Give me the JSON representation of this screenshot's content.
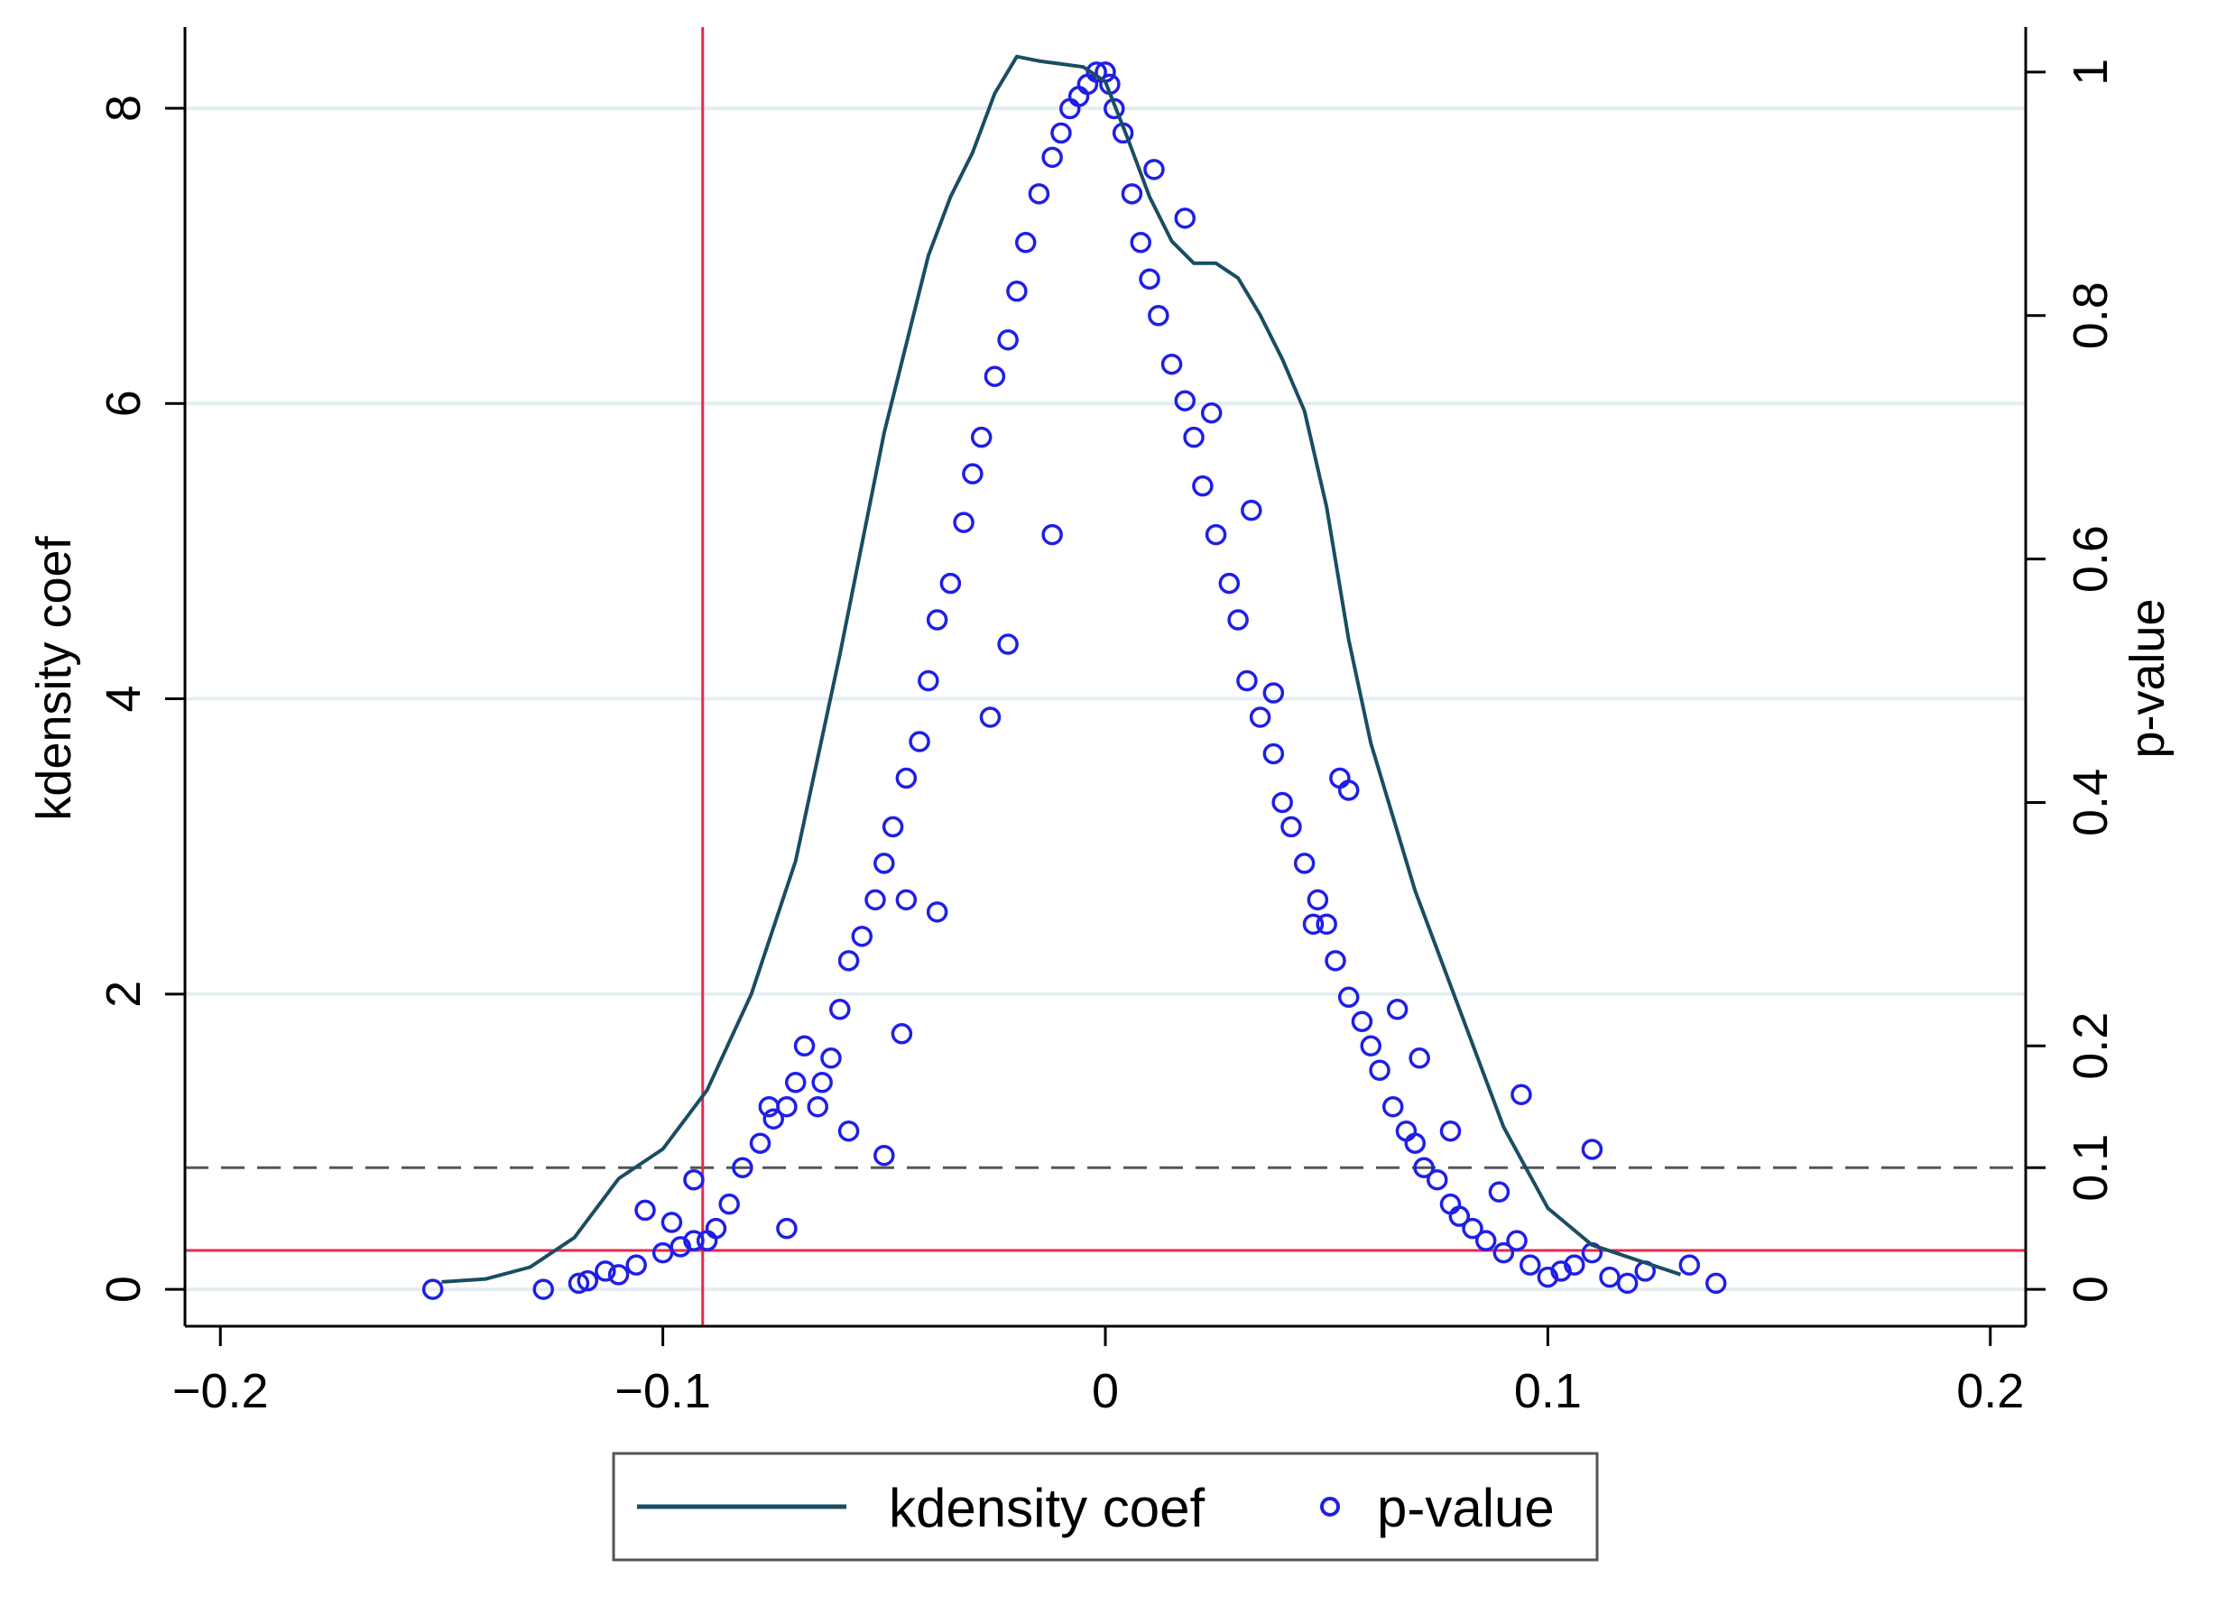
{
  "chart_data": {
    "type": "line+scatter",
    "title": "",
    "xlabel": "",
    "ylabel_left": "kdensity coef",
    "ylabel_right": "p-value",
    "xlim": [
      -0.208,
      0.208
    ],
    "ylim_left": [
      -0.25,
      8.55
    ],
    "ylim_right": [
      -0.0303,
      1.037
    ],
    "x_ticks": [
      -0.2,
      -0.1,
      0,
      0.1,
      0.2
    ],
    "x_tick_labels": [
      "−0.2",
      "−0.1",
      "0",
      "0.1",
      "0.2"
    ],
    "y_left_ticks": [
      0,
      2,
      4,
      6,
      8
    ],
    "y_left_tick_labels": [
      "0",
      "2",
      "4",
      "6",
      "8"
    ],
    "y_right_ticks": [
      0,
      0.1,
      0.2,
      0.4,
      0.6,
      0.8,
      1
    ],
    "y_right_tick_labels": [
      "0",
      "0.1",
      "0.2",
      "0.4",
      "0.6",
      "0.8",
      "1"
    ],
    "gridlines_y_left": [
      0,
      2,
      4,
      6,
      8
    ],
    "reference_lines": {
      "vertical_red_x": -0.091,
      "horizontal_red_p": 0.032,
      "horizontal_dashed_p": 0.1
    },
    "colors": {
      "density": "#1a4d63",
      "points": "#1f1fe6",
      "red_line": "#e8294f",
      "dashed": "#555555",
      "grid": "#e4eef2"
    },
    "legend": {
      "position": "bottom",
      "entries": [
        "kdensity coef",
        "p-value"
      ]
    },
    "series": [
      {
        "name": "kdensity coef",
        "axis": "left",
        "x": [
          -0.15,
          -0.14,
          -0.13,
          -0.12,
          -0.11,
          -0.105,
          -0.1,
          -0.09,
          -0.08,
          -0.07,
          -0.06,
          -0.05,
          -0.04,
          -0.035,
          -0.03,
          -0.025,
          -0.02,
          -0.015,
          -0.01,
          -0.005,
          0,
          0.005,
          0.01,
          0.015,
          0.02,
          0.025,
          0.03,
          0.035,
          0.04,
          0.045,
          0.05,
          0.055,
          0.06,
          0.065,
          0.07,
          0.08,
          0.09,
          0.1,
          0.11,
          0.12,
          0.13
        ],
        "y": [
          0.05,
          0.07,
          0.15,
          0.35,
          0.75,
          0.85,
          0.95,
          1.35,
          2.0,
          2.9,
          4.3,
          5.8,
          7.0,
          7.4,
          7.7,
          8.1,
          8.35,
          8.32,
          8.3,
          8.28,
          8.18,
          7.8,
          7.4,
          7.1,
          6.95,
          6.95,
          6.85,
          6.6,
          6.3,
          5.95,
          5.3,
          4.4,
          3.7,
          3.2,
          2.7,
          1.9,
          1.1,
          0.55,
          0.3,
          0.2,
          0.1
        ]
      },
      {
        "name": "p-value",
        "axis": "right",
        "x": [
          -0.152,
          -0.127,
          -0.119,
          -0.117,
          -0.113,
          -0.11,
          -0.106,
          -0.104,
          -0.1,
          -0.098,
          -0.096,
          -0.093,
          -0.09,
          -0.088,
          -0.085,
          -0.082,
          -0.078,
          -0.075,
          -0.072,
          -0.07,
          -0.068,
          -0.065,
          -0.062,
          -0.06,
          -0.058,
          -0.055,
          -0.052,
          -0.05,
          -0.048,
          -0.045,
          -0.042,
          -0.04,
          -0.038,
          -0.035,
          -0.032,
          -0.03,
          -0.028,
          -0.025,
          -0.022,
          -0.02,
          -0.018,
          -0.015,
          -0.012,
          -0.01,
          -0.008,
          -0.006,
          -0.004,
          -0.002,
          0,
          0.001,
          0.002,
          0.004,
          0.006,
          0.008,
          0.01,
          0.012,
          0.015,
          0.018,
          0.02,
          0.022,
          0.025,
          0.028,
          0.03,
          0.032,
          0.035,
          0.038,
          0.04,
          0.042,
          0.045,
          0.048,
          0.05,
          0.052,
          0.055,
          0.058,
          0.06,
          0.062,
          0.065,
          0.068,
          0.07,
          0.072,
          0.075,
          0.078,
          0.08,
          0.083,
          0.086,
          0.09,
          0.093,
          0.096,
          0.1,
          0.103,
          0.106,
          0.11,
          0.114,
          0.118,
          0.122,
          0.132,
          0.138,
          -0.093,
          -0.076,
          -0.064,
          -0.058,
          -0.05,
          -0.046,
          -0.038,
          -0.026,
          -0.022,
          -0.012,
          0.011,
          0.018,
          0.024,
          0.033,
          0.038,
          0.047,
          0.053,
          0.066,
          0.071,
          0.078,
          0.089,
          0.094,
          0.11,
          -0.045,
          0.055,
          -0.072
        ],
        "y": [
          0.0,
          0.0,
          0.005,
          0.007,
          0.015,
          0.012,
          0.02,
          0.065,
          0.03,
          0.055,
          0.035,
          0.04,
          0.04,
          0.05,
          0.07,
          0.1,
          0.12,
          0.14,
          0.15,
          0.17,
          0.2,
          0.15,
          0.19,
          0.23,
          0.27,
          0.29,
          0.32,
          0.35,
          0.38,
          0.42,
          0.45,
          0.5,
          0.55,
          0.58,
          0.63,
          0.67,
          0.7,
          0.75,
          0.78,
          0.82,
          0.86,
          0.9,
          0.93,
          0.95,
          0.97,
          0.98,
          0.99,
          1.0,
          1.0,
          0.99,
          0.97,
          0.95,
          0.9,
          0.86,
          0.83,
          0.8,
          0.76,
          0.73,
          0.7,
          0.66,
          0.62,
          0.58,
          0.55,
          0.5,
          0.47,
          0.44,
          0.4,
          0.38,
          0.35,
          0.32,
          0.3,
          0.27,
          0.24,
          0.22,
          0.2,
          0.18,
          0.15,
          0.13,
          0.12,
          0.1,
          0.09,
          0.07,
          0.06,
          0.05,
          0.04,
          0.03,
          0.04,
          0.02,
          0.01,
          0.015,
          0.02,
          0.03,
          0.01,
          0.005,
          0.015,
          0.02,
          0.005,
          0.09,
          0.15,
          0.17,
          0.13,
          0.11,
          0.21,
          0.31,
          0.47,
          0.53,
          0.62,
          0.92,
          0.88,
          0.72,
          0.64,
          0.49,
          0.3,
          0.42,
          0.23,
          0.19,
          0.13,
          0.08,
          0.16,
          0.115,
          0.32,
          0.41,
          0.05
        ]
      }
    ]
  }
}
